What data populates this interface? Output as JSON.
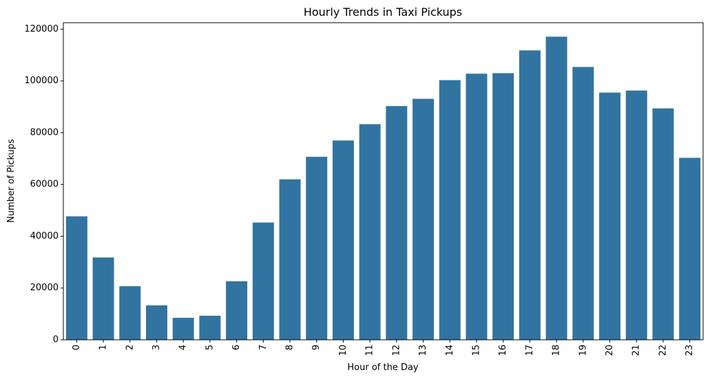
{
  "chart_data": {
    "type": "bar",
    "title": "Hourly Trends in Taxi Pickups",
    "xlabel": "Hour of the Day",
    "ylabel": "Number of Pickups",
    "categories": [
      "0",
      "1",
      "2",
      "3",
      "4",
      "5",
      "6",
      "7",
      "8",
      "9",
      "10",
      "11",
      "12",
      "13",
      "14",
      "15",
      "16",
      "17",
      "18",
      "19",
      "20",
      "21",
      "22",
      "23"
    ],
    "values": [
      47700,
      31800,
      20700,
      13300,
      8500,
      9300,
      22600,
      45300,
      62000,
      70700,
      77000,
      83300,
      90300,
      93100,
      100300,
      102800,
      103000,
      111800,
      117100,
      105400,
      95500,
      96300,
      89400,
      70300
    ],
    "ylim": [
      0,
      122500
    ],
    "yticks": [
      0,
      20000,
      40000,
      60000,
      80000,
      100000,
      120000
    ],
    "ytick_labels": [
      "0",
      "20000",
      "40000",
      "60000",
      "80000",
      "100000",
      "120000"
    ],
    "bar_color": "#3274a1",
    "grid": false,
    "legend": "none"
  }
}
